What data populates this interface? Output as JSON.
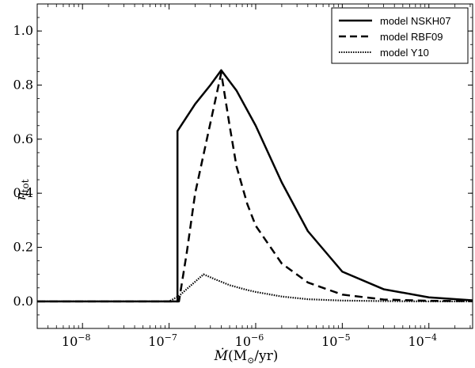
{
  "chart_data": {
    "type": "line",
    "x_scale": "log",
    "xlim": [
      3e-09,
      0.00032
    ],
    "ylim": [
      -0.1,
      1.1
    ],
    "xlabel_main": "Ṁ",
    "xlabel_unit": "(M",
    "xlabel_sub": "⊙",
    "xlabel_tail": "/yr)",
    "ylabel_main": "η",
    "ylabel_sub": "tot",
    "x_ticks": [
      {
        "value": 1e-08,
        "base": "10",
        "exp": "−8"
      },
      {
        "value": 1e-07,
        "base": "10",
        "exp": "−7"
      },
      {
        "value": 1e-06,
        "base": "10",
        "exp": "−6"
      },
      {
        "value": 1e-05,
        "base": "10",
        "exp": "−5"
      },
      {
        "value": 0.0001,
        "base": "10",
        "exp": "−4"
      }
    ],
    "y_ticks": [
      {
        "value": 0.0,
        "label": "0.0"
      },
      {
        "value": 0.2,
        "label": "0.2"
      },
      {
        "value": 0.4,
        "label": "0.4"
      },
      {
        "value": 0.6,
        "label": "0.6"
      },
      {
        "value": 0.8,
        "label": "0.8"
      },
      {
        "value": 1.0,
        "label": "1.0"
      }
    ],
    "legend_position": "top-right",
    "series": [
      {
        "name": "model NSKH07",
        "style": "solid",
        "x": [
          3e-09,
          1e-08,
          5e-08,
          1e-07,
          1.25e-07,
          1.25e-07,
          2e-07,
          3e-07,
          4e-07,
          6e-07,
          1e-06,
          2e-06,
          4e-06,
          1e-05,
          3e-05,
          0.0001,
          0.00032
        ],
        "y": [
          0,
          0,
          0,
          0,
          0.0,
          0.63,
          0.73,
          0.8,
          0.855,
          0.78,
          0.65,
          0.44,
          0.26,
          0.11,
          0.045,
          0.015,
          0.004
        ]
      },
      {
        "name": "model RBF09",
        "style": "dashed",
        "x": [
          3e-09,
          1e-08,
          5e-08,
          1e-07,
          1.3e-07,
          1.6e-07,
          2e-07,
          3e-07,
          4e-07,
          5e-07,
          6e-07,
          8e-07,
          1e-06,
          2e-06,
          4e-06,
          1e-05,
          3e-05,
          0.0001,
          0.00032
        ],
        "y": [
          0,
          0,
          0,
          0,
          0.0,
          0.18,
          0.4,
          0.66,
          0.845,
          0.65,
          0.5,
          0.36,
          0.28,
          0.14,
          0.07,
          0.025,
          0.007,
          0.002,
          0.001
        ]
      },
      {
        "name": "model Y10",
        "style": "dotted",
        "x": [
          3e-09,
          1e-08,
          5e-08,
          1e-07,
          1.3e-07,
          1.8e-07,
          2.5e-07,
          3.5e-07,
          5e-07,
          8e-07,
          1e-06,
          2e-06,
          4e-06,
          1e-05,
          3e-05,
          0.0001,
          0.00032
        ],
        "y": [
          0,
          0,
          0,
          0,
          0.02,
          0.06,
          0.1,
          0.08,
          0.06,
          0.042,
          0.035,
          0.018,
          0.008,
          0.003,
          0.001,
          0.0,
          0.0
        ]
      }
    ]
  }
}
